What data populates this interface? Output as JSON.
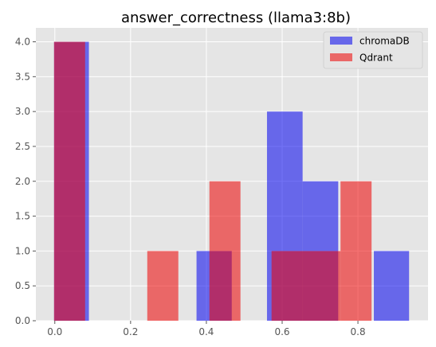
{
  "chart_data": {
    "type": "bar",
    "title": "answer_correctness (llama3:8b)",
    "xlabel": "",
    "ylabel": "",
    "xlim": [
      -0.05,
      0.985
    ],
    "ylim": [
      0,
      4.2
    ],
    "x_ticks": [
      0.0,
      0.2,
      0.4,
      0.6,
      0.8
    ],
    "x_tick_labels": [
      "0.0",
      "0.2",
      "0.4",
      "0.6",
      "0.8"
    ],
    "y_ticks": [
      0.0,
      0.5,
      1.0,
      1.5,
      2.0,
      2.5,
      3.0,
      3.5,
      4.0
    ],
    "y_tick_labels": [
      "0.0",
      "0.5",
      "1.0",
      "1.5",
      "2.0",
      "2.5",
      "3.0",
      "3.5",
      "4.0"
    ],
    "grid": true,
    "legend_position": "top-right",
    "series": [
      {
        "name": "chromaDB",
        "color": "#0000ee",
        "opacity": 0.55,
        "bins": [
          {
            "x0": -0.002,
            "x1": 0.09,
            "count": 4
          },
          {
            "x0": 0.374,
            "x1": 0.467,
            "count": 1
          },
          {
            "x0": 0.56,
            "x1": 0.654,
            "count": 3
          },
          {
            "x0": 0.654,
            "x1": 0.748,
            "count": 2
          },
          {
            "x0": 0.842,
            "x1": 0.935,
            "count": 1
          }
        ]
      },
      {
        "name": "Qdrant",
        "color": "#ee0000",
        "opacity": 0.55,
        "bins": [
          {
            "x0": -0.002,
            "x1": 0.08,
            "count": 4
          },
          {
            "x0": 0.244,
            "x1": 0.326,
            "count": 1
          },
          {
            "x0": 0.408,
            "x1": 0.49,
            "count": 2
          },
          {
            "x0": 0.572,
            "x1": 0.754,
            "count": 1
          },
          {
            "x0": 0.754,
            "x1": 0.836,
            "count": 2
          }
        ]
      }
    ]
  }
}
